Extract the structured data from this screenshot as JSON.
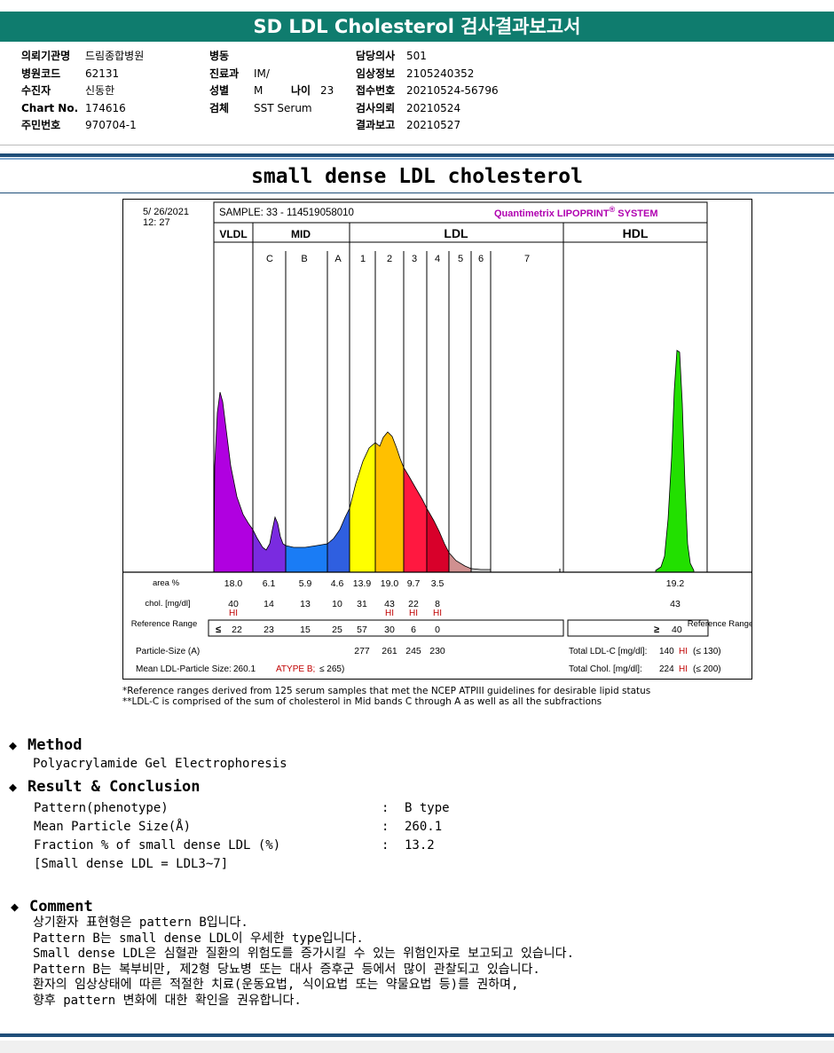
{
  "header": {
    "title": "SD LDL Cholesterol 검사결과보고서"
  },
  "info": {
    "col1": [
      {
        "label": "의뢰기관명",
        "value": "드림종합병원"
      },
      {
        "label": "병원코드",
        "value": "62131"
      },
      {
        "label": "수진자",
        "value": "신동한"
      },
      {
        "label": "Chart No.",
        "value": "174616"
      },
      {
        "label": "주민번호",
        "value": "970704-1"
      }
    ],
    "col2": [
      {
        "label": "병동",
        "value": ""
      },
      {
        "label": "진료과",
        "value": "IM/"
      },
      {
        "label": "성별",
        "value": "M"
      },
      {
        "label": "검체",
        "value": "SST Serum"
      }
    ],
    "age": {
      "label": "나이",
      "value": "23"
    },
    "col3": [
      {
        "label": "담당의사",
        "value": "501"
      },
      {
        "label": "임상정보",
        "value": "2105240352"
      },
      {
        "label": "접수번호",
        "value": "20210524-56796"
      },
      {
        "label": "검사의뢰",
        "value": "20210524"
      },
      {
        "label": "결과보고",
        "value": "20210527"
      }
    ]
  },
  "report_title": "small dense LDL cholesterol",
  "figure": {
    "date": "5/ 26/2021",
    "time": "12: 27",
    "sample": "SAMPLE:   33 - 114519058010",
    "brand": "Quantimetrix LIPOPRINT",
    "brand_sup": "®",
    "brand_tail": " SYSTEM",
    "group_labels": [
      "VLDL",
      "MID",
      "LDL",
      "HDL"
    ],
    "band_labels": [
      "C",
      "B",
      "A",
      "1",
      "2",
      "3",
      "4",
      "5",
      "6",
      "7"
    ],
    "row_labels": {
      "area": "area %",
      "chol": "chol. [mg/dl]",
      "ref": "Reference Range",
      "ref_right": "Reference Range",
      "psize": "Particle-Size (A)",
      "mean": "Mean LDL-Particle Size:"
    },
    "area": [
      "18.0",
      "6.1",
      "5.9",
      "4.6",
      "13.9",
      "19.0",
      "9.7",
      "3.5"
    ],
    "hdl_area": "19.2",
    "chol": [
      "40",
      "14",
      "13",
      "10",
      "31",
      "43",
      "22",
      "8"
    ],
    "hdl_chol": "43",
    "chol_flags": [
      "HI",
      "",
      "",
      "",
      "",
      "HI",
      "HI",
      "HI"
    ],
    "ref_prefix": "≤",
    "ref": [
      "22",
      "23",
      "15",
      "25",
      "57",
      "30",
      "6",
      "0"
    ],
    "hdl_ref_prefix": "≥",
    "hdl_ref": "40",
    "psize": [
      "277",
      "261",
      "245",
      "230"
    ],
    "mean_value": "260.1",
    "mean_flag": "ATYPE B;",
    "mean_ref": "≤ 265)",
    "total_ldl_label": "Total LDL-C [mg/dl]:",
    "total_ldl_value": "140",
    "total_ldl_flag": "HI",
    "total_ldl_ref": "(≤ 130)",
    "total_chol_label": "Total Chol. [mg/dl]:",
    "total_chol_value": "224",
    "total_chol_flag": "HI",
    "total_chol_ref": "(≤ 200)",
    "notes": [
      "*Reference ranges derived from 125 serum samples that met the NCEP ATPIII guidelines for desirable lipid status",
      "**LDL-C is comprised of the sum of cholesterol in Mid bands C through A as well as all the subfractions"
    ],
    "colors": {
      "vldl": "#b000e0",
      "c": "#7a2be0",
      "b": "#1a7cf5",
      "a": "#2f5fe0",
      "l1": "#ffff00",
      "l2": "#ffc000",
      "l3": "#ff1840",
      "l4": "#d8002a",
      "hdl": "#22e000",
      "hi": "#c00000"
    }
  },
  "method": {
    "heading": "Method",
    "text": "Polyacrylamide Gel Electrophoresis"
  },
  "result": {
    "heading": "Result & Conclusion",
    "rows": [
      {
        "label": "Pattern(phenotype)",
        "value": "B type"
      },
      {
        "label": "Mean Particle Size(Å)",
        "value": "260.1"
      },
      {
        "label": "Fraction % of small dense LDL (%)",
        "value": "13.2"
      }
    ],
    "note": "[Small dense LDL = LDL3~7]"
  },
  "comment": {
    "heading": "Comment",
    "lines": [
      "상기환자 표현형은 pattern B입니다.",
      "Pattern B는 small dense LDL이 우세한 type입니다.",
      "Small dense LDL은 심혈관 질환의 위험도를 증가시킬 수 있는 위험인자로 보고되고 있습니다.",
      "Pattern B는 복부비만, 제2형 당뇨병 또는 대사 증후군 등에서 많이 관찰되고 있습니다.",
      "환자의 임상상태에 따른 적절한 치료(운동요법, 식이요법 또는 약물요법 등)를 권하며,",
      "향후 pattern 변화에 대한 확인을 권유합니다."
    ]
  }
}
